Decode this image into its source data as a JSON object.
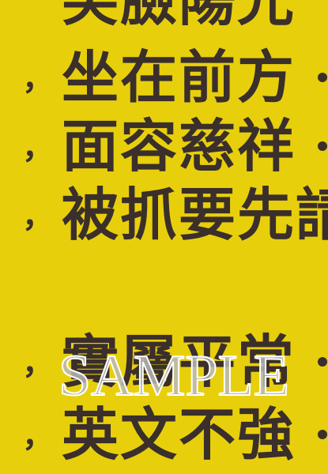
{
  "poster": {
    "background": "#e8cf0c",
    "text_color": "#3a2f2a",
    "lines": [
      {
        "comma": "",
        "text": "笑臉陽光"
      },
      {
        "comma": "，",
        "text": "坐在前方"
      },
      {
        "comma": "，",
        "text": "面容慈祥"
      },
      {
        "comma": "，",
        "text": "被抓要先請"
      },
      {
        "comma": "，",
        "text": "實屬平常"
      },
      {
        "comma": "，",
        "text": "英文不強"
      }
    ]
  },
  "watermark": {
    "text": "SAMPLE",
    "color": "#b8b8b8"
  }
}
